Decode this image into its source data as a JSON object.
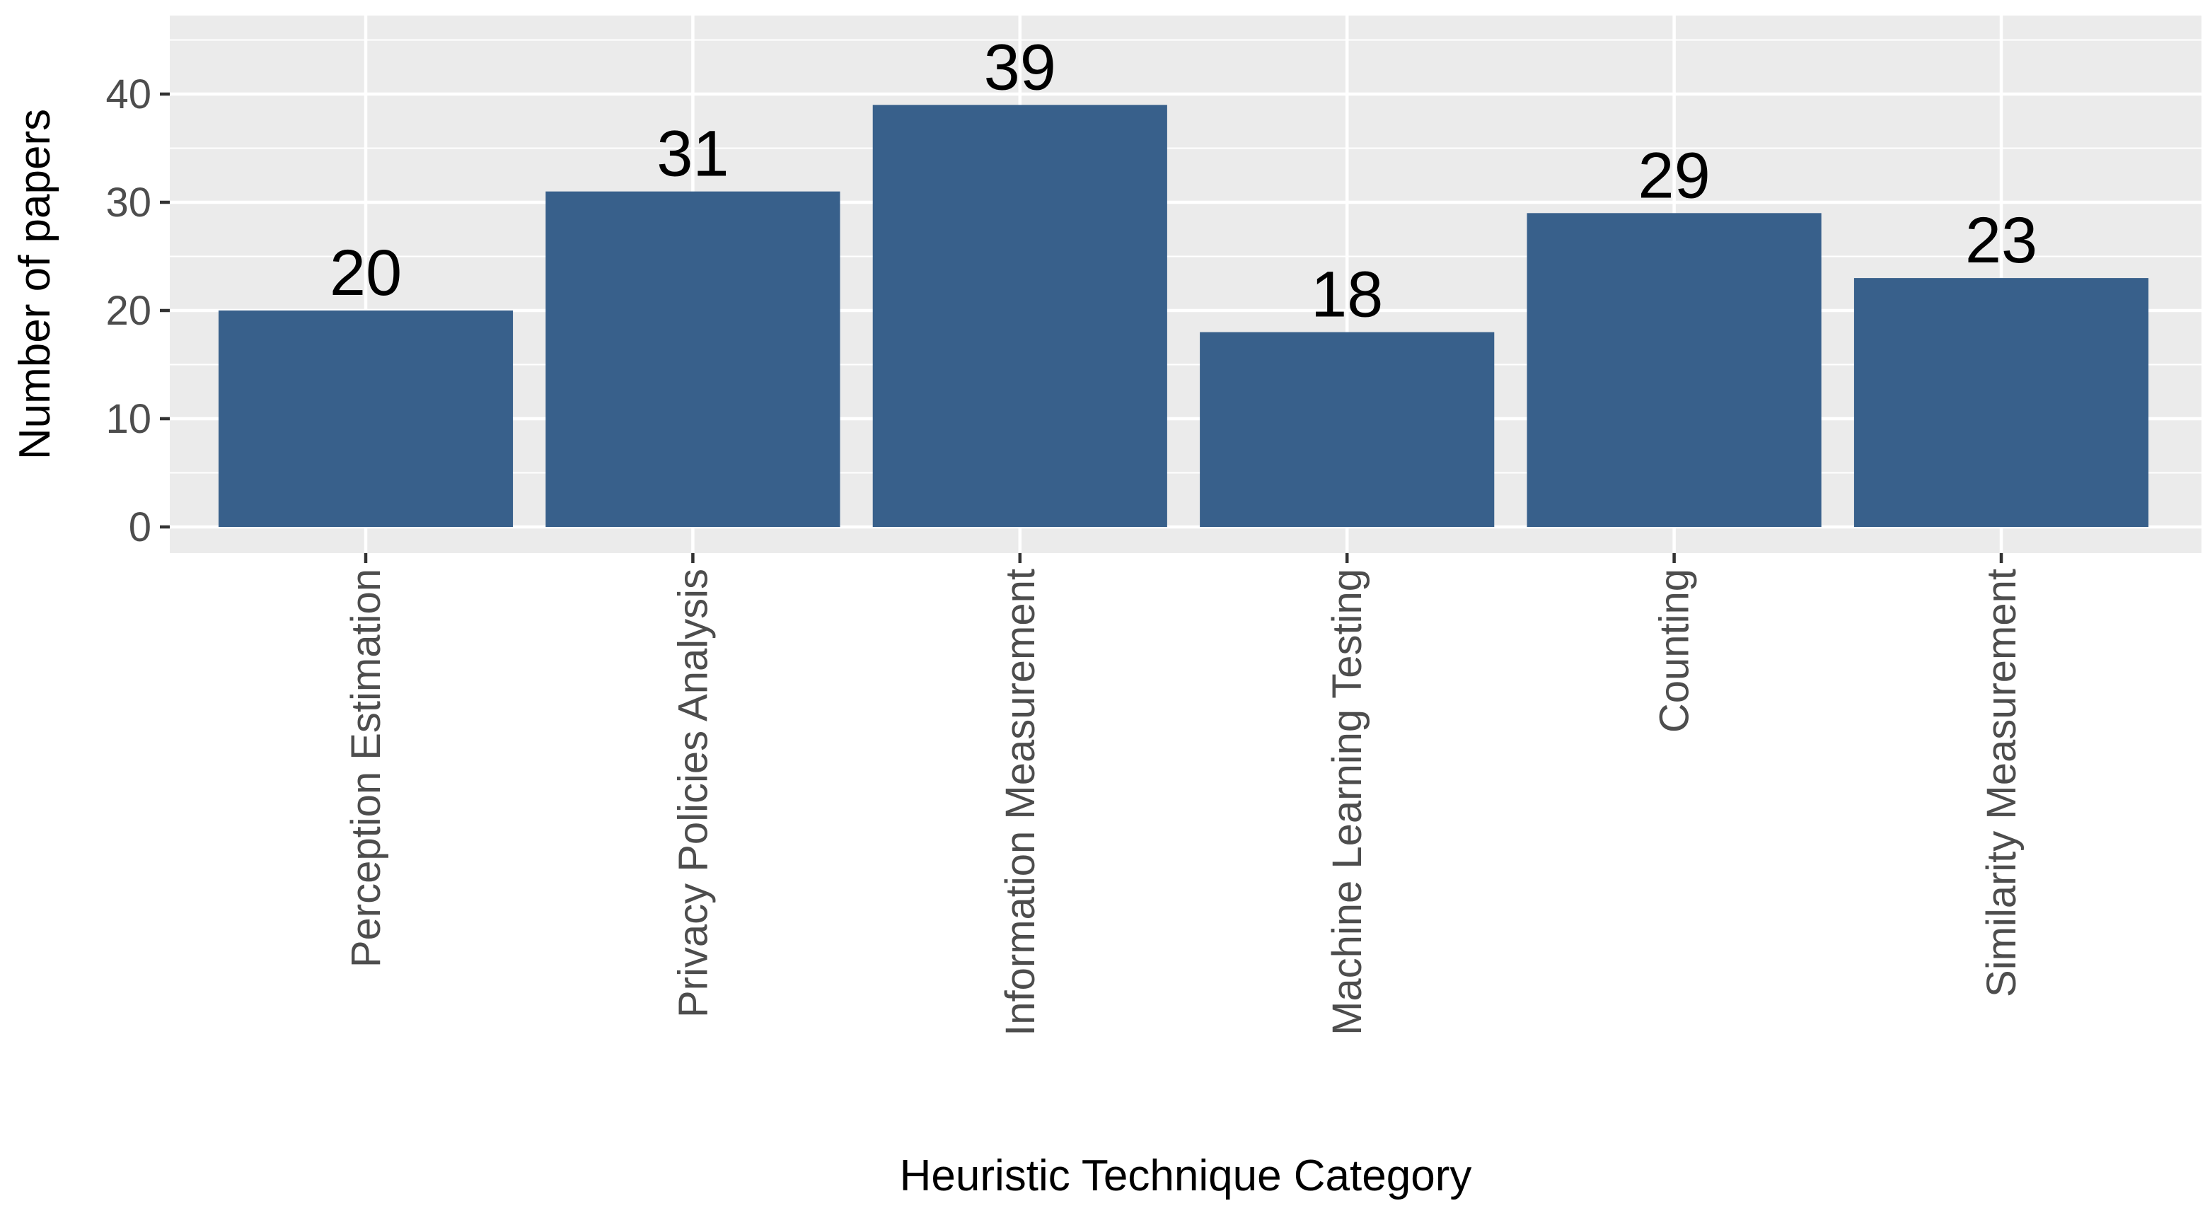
{
  "chart_data": {
    "type": "bar",
    "categories": [
      "Perception Estimation",
      "Privacy Policies Analysis",
      "Information Measurement",
      "Machine Learning Testing",
      "Counting",
      "Similarity Measurement"
    ],
    "values": [
      20,
      31,
      39,
      18,
      29,
      23
    ],
    "data_labels": [
      "20",
      "31",
      "39",
      "18",
      "29",
      "23"
    ],
    "title": "",
    "xlabel": "Heuristic Technique Category",
    "ylabel": "Number of papers",
    "ylim": [
      0,
      47
    ],
    "yticks": [
      0,
      10,
      20,
      30,
      40
    ],
    "ytick_labels": [
      "0",
      "10",
      "20",
      "30",
      "40"
    ],
    "grid": true,
    "legend": "none",
    "colors": {
      "bar": "#38608b",
      "panel": "#ebebeb",
      "grid": "#ffffff",
      "tick_text": "#4d4d4d",
      "tick_mark": "#333333"
    }
  }
}
